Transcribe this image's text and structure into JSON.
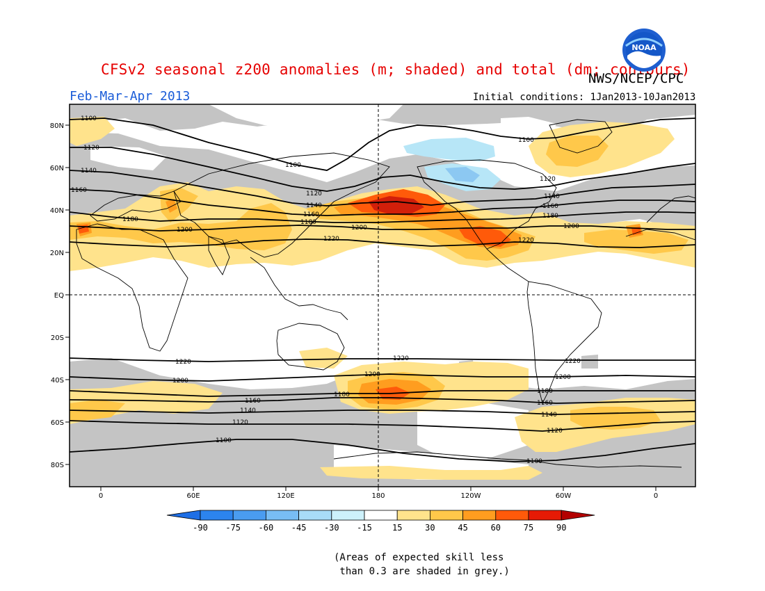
{
  "header": {
    "title": "CFSv2 seasonal z200 anomalies (m; shaded) and total (dm; contours)",
    "agency": "NWS/NCEP/CPC",
    "season": "Feb-Mar-Apr 2013",
    "initial_conditions": "Initial conditions: 1Jan2013-10Jan2013",
    "logo_text": "NOAA"
  },
  "map": {
    "lon_labels": [
      "0",
      "60E",
      "120E",
      "180",
      "120W",
      "60W",
      "0"
    ],
    "lat_labels": [
      "80N",
      "60N",
      "40N",
      "20N",
      "EQ",
      "20S",
      "40S",
      "60S",
      "80S"
    ]
  },
  "contours": {
    "labels_nh": [
      "1100",
      "1120",
      "1140",
      "1160",
      "1180",
      "1200",
      "1220"
    ],
    "labels_sh": [
      "1220",
      "1200",
      "1180",
      "1160",
      "1140",
      "1120",
      "1100"
    ]
  },
  "legend": {
    "ticks": [
      "-90",
      "-75",
      "-60",
      "-45",
      "-30",
      "-15",
      "15",
      "30",
      "45",
      "60",
      "75",
      "90"
    ],
    "colors": [
      "#1e6fe6",
      "#2c84ee",
      "#4a9cf0",
      "#78bdf4",
      "#a8dcf8",
      "#cdf1fb",
      "#ffffff",
      "#ffe38c",
      "#ffc84a",
      "#ff9d1f",
      "#ff5a0a",
      "#e61a05",
      "#b30000"
    ],
    "note": "(Areas of expected skill less\n than 0.3 are shaded in grey.)"
  },
  "palette": {
    "grey": "#c4c4c4",
    "light_orange": "#ffe38c",
    "orange": "#ffc84a",
    "dark_orange": "#ff9d1f",
    "red_orange": "#ff5a0a",
    "red": "#d21f0a",
    "light_blue": "#b7e6f7",
    "blue": "#8cc8f2"
  }
}
